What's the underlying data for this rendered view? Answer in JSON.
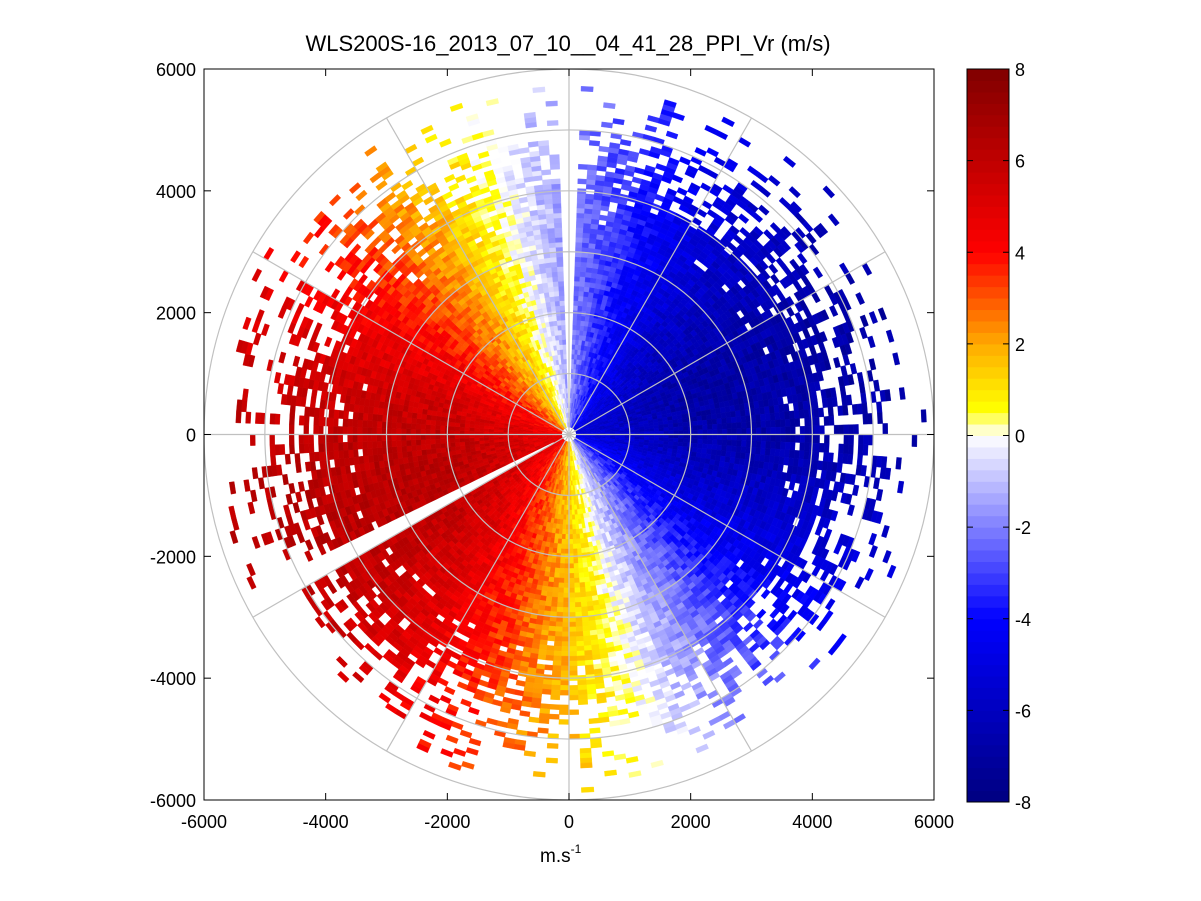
{
  "chart_data": {
    "type": "heatmap",
    "subtype": "polar PPI radial velocity scan",
    "title": "WLS200S-16_2013_07_10__04_41_28_PPI_Vr (m/s)",
    "xlabel_base": "m.s",
    "xlabel_exponent": "-1",
    "ylabel": "",
    "xlim": [
      -6000,
      6000
    ],
    "ylim": [
      -6000,
      6000
    ],
    "x_ticks": [
      "-6000",
      "-4000",
      "-2000",
      "0",
      "2000",
      "4000",
      "6000"
    ],
    "x_tick_values": [
      -6000,
      -4000,
      -2000,
      0,
      2000,
      4000,
      6000
    ],
    "y_ticks": [
      "6000",
      "4000",
      "2000",
      "0",
      "-2000",
      "-4000",
      "-6000"
    ],
    "y_tick_values": [
      6000,
      4000,
      2000,
      0,
      -2000,
      -4000,
      -6000
    ],
    "max_range_m": 6000,
    "range_rings_m": [
      1000,
      2000,
      3000,
      4000,
      5000,
      6000
    ],
    "spoke_angles_deg": [
      0,
      30,
      60,
      90,
      120,
      150,
      180,
      210,
      240,
      270,
      300,
      330
    ],
    "colorbar": {
      "min": -8,
      "max": 8,
      "ticks": [
        "8",
        "6",
        "4",
        "2",
        "0",
        "-2",
        "-4",
        "-6",
        "-8"
      ],
      "tick_values": [
        8,
        6,
        4,
        2,
        0,
        -2,
        -4,
        -6,
        -8
      ],
      "colormap": "blue-white-yellow-red",
      "stops": [
        {
          "value": -8,
          "color": "#000080"
        },
        {
          "value": -4,
          "color": "#0000ff"
        },
        {
          "value": 0,
          "color": "#ffffff"
        },
        {
          "value": 0.6,
          "color": "#ffff00"
        },
        {
          "value": 2,
          "color": "#ffaa00"
        },
        {
          "value": 4,
          "color": "#ff0000"
        },
        {
          "value": 8,
          "color": "#800000"
        }
      ]
    },
    "wind_field": {
      "peak_negative_velocity": -6.8,
      "peak_positive_velocity": 6.2,
      "flow_toward_azimuth_deg": 255,
      "zero_line_azimuth_deg": [
        165,
        345
      ],
      "full_coverage_range_m": 4000,
      "sparse_coverage_range_m": 6000
    },
    "grid": "polar",
    "legend": "colorbar-right"
  },
  "colors": {
    "grid": "#c0c0c0",
    "axis": "#000000",
    "background": "#ffffff"
  }
}
